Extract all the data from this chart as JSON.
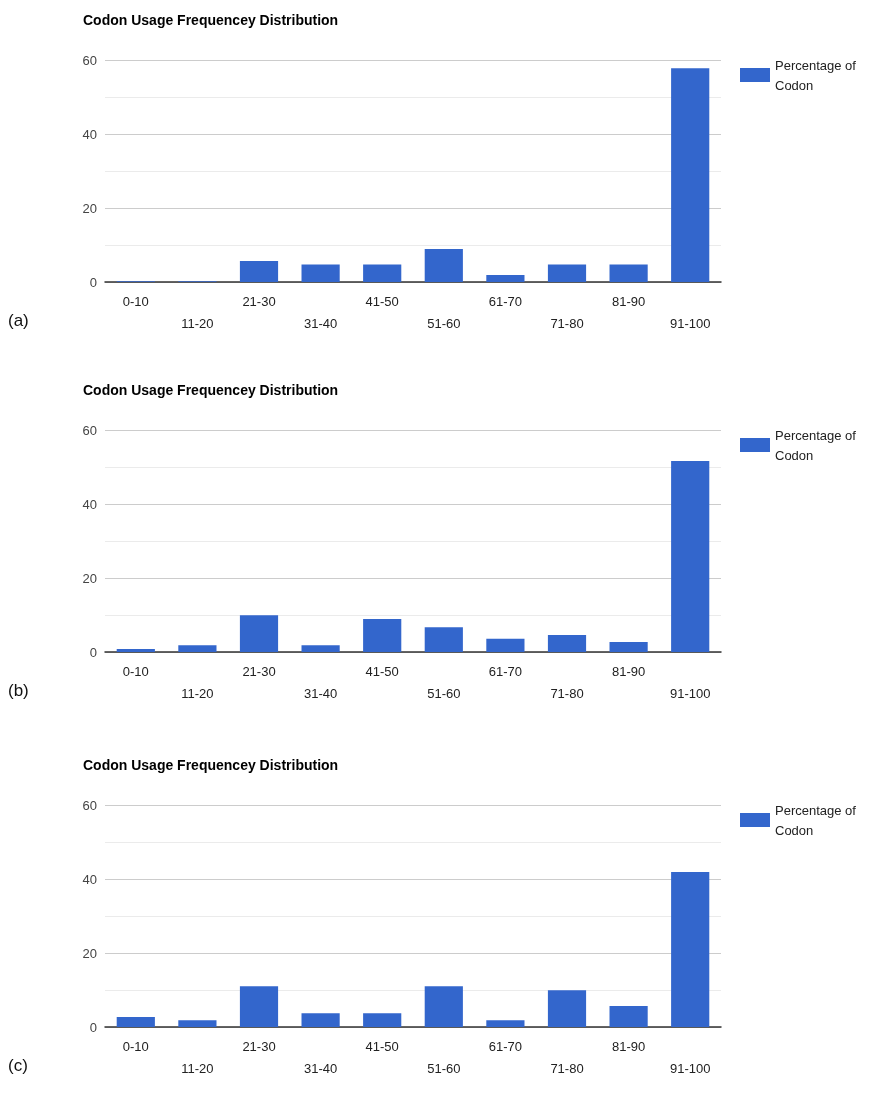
{
  "chart_data": [
    {
      "type": "bar",
      "title": "Codon Usage Frequencey Distribution",
      "categories": [
        "0-10",
        "11-20",
        "21-30",
        "31-40",
        "41-50",
        "51-60",
        "61-70",
        "71-80",
        "81-90",
        "91-100"
      ],
      "series": [
        {
          "name": "Percentage of Codon",
          "color": "#3366cc",
          "values": [
            0.2,
            0.2,
            5.7,
            4.7,
            4.7,
            8.9,
            1.9,
            4.7,
            4.7,
            57.8
          ]
        }
      ],
      "ylim": [
        0,
        60
      ],
      "yticks": [
        0,
        {
          "value": 10,
          "label": null
        },
        20,
        {
          "value": 30,
          "label": null
        },
        40,
        {
          "value": 50,
          "label": null
        },
        60
      ],
      "grid": "y",
      "legend": "top right",
      "annotations": [
        "(a)"
      ]
    },
    {
      "type": "bar",
      "title": "Codon Usage Frequencey Distribution",
      "categories": [
        "0-10",
        "11-20",
        "21-30",
        "31-40",
        "41-50",
        "51-60",
        "61-70",
        "71-80",
        "81-90",
        "91-100"
      ],
      "series": [
        {
          "name": "Percentage of Codon",
          "color": "#3366cc",
          "values": [
            0.8,
            1.8,
            9.9,
            1.8,
            8.9,
            6.7,
            3.6,
            4.6,
            2.7,
            51.6
          ]
        }
      ],
      "ylim": [
        0,
        60
      ],
      "yticks": [
        0,
        {
          "value": 10,
          "label": null
        },
        20,
        {
          "value": 30,
          "label": null
        },
        40,
        {
          "value": 50,
          "label": null
        },
        60
      ],
      "grid": "y",
      "legend": "top right",
      "annotations": [
        "(b)"
      ]
    },
    {
      "type": "bar",
      "title": "Codon Usage Frequencey Distribution",
      "categories": [
        "0-10",
        "11-20",
        "21-30",
        "31-40",
        "41-50",
        "51-60",
        "61-70",
        "71-80",
        "81-90",
        "91-100"
      ],
      "series": [
        {
          "name": "Percentage of Codon",
          "color": "#3366cc",
          "values": [
            2.7,
            1.8,
            11,
            3.7,
            3.7,
            11,
            1.8,
            9.9,
            5.7,
            41.9
          ]
        }
      ],
      "ylim": [
        0,
        60
      ],
      "yticks": [
        0,
        {
          "value": 10,
          "label": null
        },
        20,
        {
          "value": 30,
          "label": null
        },
        40,
        {
          "value": 50,
          "label": null
        },
        60
      ],
      "grid": "y",
      "legend": "top right",
      "annotations": [
        "(c)"
      ]
    }
  ]
}
